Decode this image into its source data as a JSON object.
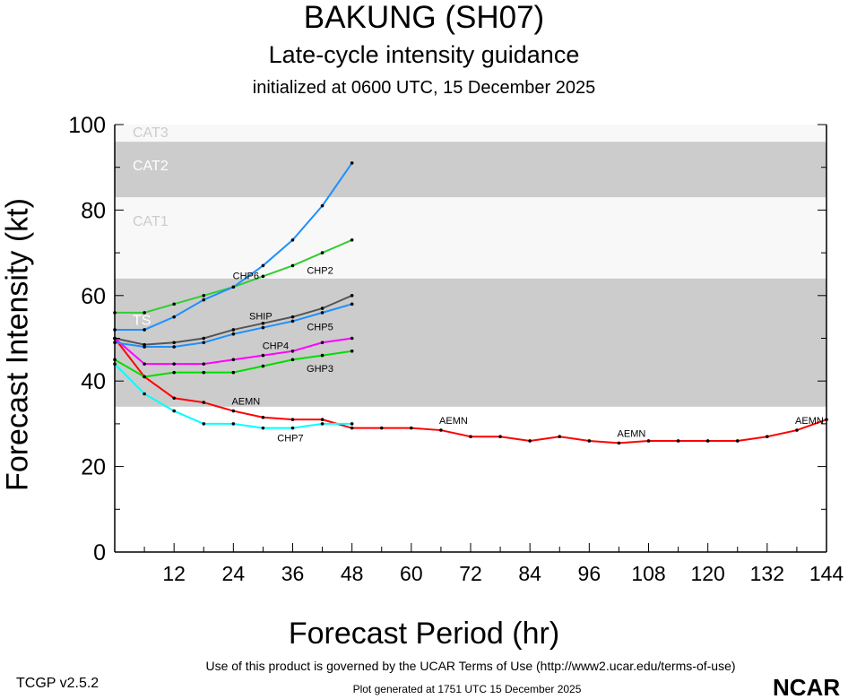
{
  "header": {
    "title": "BAKUNG (SH07)",
    "subtitle": "Late-cycle intensity guidance",
    "initialized": "initialized at 0600 UTC, 15 December 2025"
  },
  "footer": {
    "version": "TCGP v2.5.2",
    "terms": "Use of this product is governed by the UCAR Terms of Use (http://www2.ucar.edu/terms-of-use)",
    "generated": "Plot generated at 1751 UTC   15 December 2025",
    "logo": "NCAR"
  },
  "chart_data": {
    "type": "line",
    "title": "BAKUNG (SH07)",
    "xlabel": "Forecast Period (hr)",
    "ylabel": "Forecast Intensity (kt)",
    "xlim": [
      0,
      144
    ],
    "ylim": [
      0,
      100
    ],
    "xticks": [
      12,
      24,
      36,
      48,
      60,
      72,
      84,
      96,
      108,
      120,
      132,
      144
    ],
    "yticks": [
      0,
      20,
      40,
      60,
      80,
      100
    ],
    "bands": [
      {
        "label": "TS",
        "range": [
          34,
          64
        ],
        "color": "#cccccc",
        "label_color": "#ffffff"
      },
      {
        "label": "CAT1",
        "range": [
          64,
          83
        ],
        "color": "#f8f8f8",
        "label_color": "#cccccc"
      },
      {
        "label": "CAT2",
        "range": [
          83,
          96
        ],
        "color": "#cccccc",
        "label_color": "#ffffff"
      },
      {
        "label": "CAT3",
        "range": [
          96,
          100
        ],
        "color": "#f8f8f8",
        "label_color": "#cccccc"
      }
    ],
    "series": [
      {
        "name": "AEMN",
        "color": "#ff0000",
        "x": [
          0,
          6,
          12,
          18,
          24,
          30,
          36,
          42,
          48,
          54,
          60,
          66,
          72,
          78,
          84,
          90,
          96,
          102,
          108,
          114,
          120,
          126,
          132,
          138,
          144
        ],
        "values": [
          50,
          41,
          36,
          35,
          33,
          31.5,
          31,
          31,
          29,
          29,
          29,
          28.5,
          27,
          27,
          26,
          27,
          26,
          25.5,
          26,
          26,
          26,
          26,
          27,
          28.5,
          31
        ],
        "label_at": [
          24,
          66,
          102,
          138
        ]
      },
      {
        "name": "CHP7",
        "color": "#00ffff",
        "x": [
          0,
          6,
          12,
          18,
          24,
          30,
          36,
          42,
          48
        ],
        "values": [
          44,
          37,
          33,
          30,
          30,
          29,
          29,
          30,
          30
        ],
        "label_at": [
          24
        ]
      },
      {
        "name": "GHP3",
        "color": "#00dd00",
        "x": [
          0,
          6,
          12,
          18,
          24,
          30,
          36,
          42,
          48
        ],
        "values": [
          45,
          41,
          42,
          42,
          42,
          43.5,
          45,
          46,
          47
        ],
        "label_at": [
          30
        ]
      },
      {
        "name": "CHP4",
        "color": "#ff00ff",
        "x": [
          0,
          6,
          12,
          18,
          24,
          30,
          36,
          42,
          48
        ],
        "values": [
          50,
          44,
          44,
          44,
          45,
          46,
          47,
          49,
          50
        ],
        "label_at": [
          30
        ]
      },
      {
        "name": "CHP5",
        "color": "#1e90ff",
        "x": [
          0,
          6,
          12,
          18,
          24,
          30,
          36,
          42,
          48
        ],
        "values": [
          49,
          48,
          48,
          49,
          51,
          52.5,
          54,
          56,
          58
        ],
        "label_at": [
          30
        ]
      },
      {
        "name": "SHIP",
        "color": "#555555",
        "x": [
          0,
          6,
          12,
          18,
          24,
          30,
          36,
          42,
          48
        ],
        "values": [
          50,
          48.5,
          49,
          50,
          52,
          53.5,
          55,
          57,
          60
        ],
        "label_at": [
          30
        ]
      },
      {
        "name": "CHP2",
        "color": "#33cc33",
        "x": [
          0,
          6,
          12,
          18,
          24,
          30,
          36,
          42,
          48
        ],
        "values": [
          56,
          56,
          58,
          60,
          62,
          64.5,
          67,
          70,
          73
        ],
        "label_at": [
          30
        ]
      },
      {
        "name": "CHP6",
        "color": "#1e90ff",
        "x": [
          0,
          6,
          12,
          18,
          24,
          30,
          36,
          42,
          48
        ],
        "values": [
          52,
          52,
          55,
          59,
          62,
          67,
          73,
          81,
          91
        ],
        "label_at": [
          27
        ]
      }
    ]
  }
}
